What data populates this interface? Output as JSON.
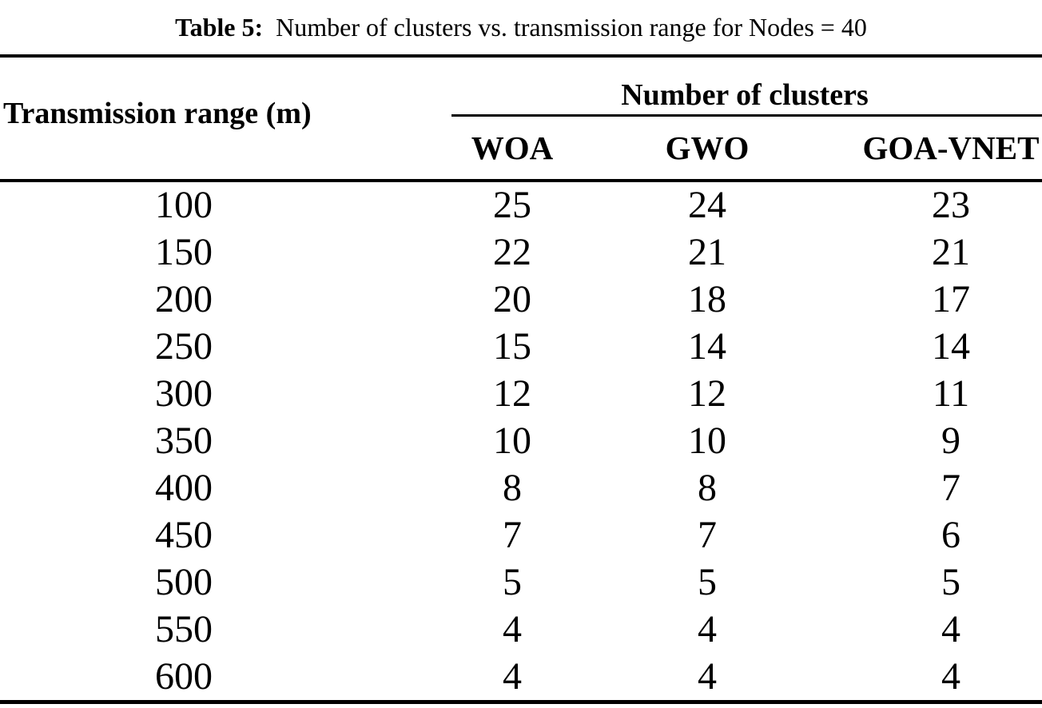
{
  "caption": {
    "label": "Table 5:",
    "text": "Number of clusters vs. transmission range for Nodes = 40"
  },
  "table": {
    "col1_header": "Transmission range (m)",
    "group_header": "Number of clusters",
    "sub_headers": [
      "WOA",
      "GWO",
      "GOA-VNET"
    ],
    "rows": [
      {
        "range": "100",
        "woa": "25",
        "gwo": "24",
        "goa_vnet": "23"
      },
      {
        "range": "150",
        "woa": "22",
        "gwo": "21",
        "goa_vnet": "21"
      },
      {
        "range": "200",
        "woa": "20",
        "gwo": "18",
        "goa_vnet": "17"
      },
      {
        "range": "250",
        "woa": "15",
        "gwo": "14",
        "goa_vnet": "14"
      },
      {
        "range": "300",
        "woa": "12",
        "gwo": "12",
        "goa_vnet": "11"
      },
      {
        "range": "350",
        "woa": "10",
        "gwo": "10",
        "goa_vnet": "9"
      },
      {
        "range": "400",
        "woa": "8",
        "gwo": "8",
        "goa_vnet": "7"
      },
      {
        "range": "450",
        "woa": "7",
        "gwo": "7",
        "goa_vnet": "6"
      },
      {
        "range": "500",
        "woa": "5",
        "gwo": "5",
        "goa_vnet": "5"
      },
      {
        "range": "550",
        "woa": "4",
        "gwo": "4",
        "goa_vnet": "4"
      },
      {
        "range": "600",
        "woa": "4",
        "gwo": "4",
        "goa_vnet": "4"
      }
    ]
  },
  "colors": {
    "text": "#000000",
    "background": "#ffffff",
    "rule": "#000000"
  },
  "chart_data": {
    "type": "table",
    "title": "Table 5: Number of clusters vs. transmission range for Nodes = 40",
    "columns": [
      "Transmission range (m)",
      "WOA",
      "GWO",
      "GOA-VNET"
    ],
    "rows": [
      [
        100,
        25,
        24,
        23
      ],
      [
        150,
        22,
        21,
        21
      ],
      [
        200,
        20,
        18,
        17
      ],
      [
        250,
        15,
        14,
        14
      ],
      [
        300,
        12,
        12,
        11
      ],
      [
        350,
        10,
        10,
        9
      ],
      [
        400,
        8,
        8,
        7
      ],
      [
        450,
        7,
        7,
        6
      ],
      [
        500,
        5,
        5,
        5
      ],
      [
        550,
        4,
        4,
        4
      ],
      [
        600,
        4,
        4,
        4
      ]
    ]
  }
}
